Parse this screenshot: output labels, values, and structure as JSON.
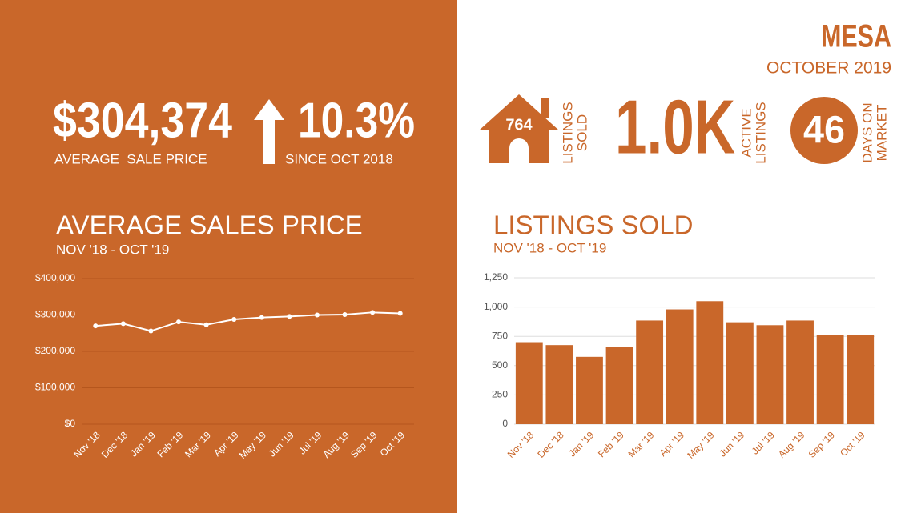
{
  "header": {
    "city": "MESA",
    "period": "OCTOBER 2019"
  },
  "stats": {
    "avg_price": "$304,374",
    "avg_price_label": "AVERAGE  SALE PRICE",
    "change": "10.3%",
    "change_label": "SINCE OCT 2018",
    "listings_sold": "764",
    "listings_sold_label": [
      "LISTINGS",
      "SOLD"
    ],
    "active": "1.0K",
    "active_label": [
      "ACTIVE",
      "LISTINGS"
    ],
    "days": "46",
    "days_label": [
      "DAYS ON",
      "MARKET"
    ]
  },
  "chart_data": [
    {
      "type": "line",
      "title": "AVERAGE SALES PRICE",
      "subtitle": "NOV '18 - OCT '19",
      "categories": [
        "Nov '18",
        "Dec '18",
        "Jan '19",
        "Feb '19",
        "Mar '19",
        "Apr '19",
        "May '19",
        "Jun '19",
        "Jul '19",
        "Aug '19",
        "Sep '19",
        "Oct '19"
      ],
      "values": [
        270000,
        276000,
        256000,
        281000,
        273000,
        288000,
        293000,
        296000,
        300000,
        301000,
        307000,
        304374
      ],
      "color": "#ffffff",
      "ylim": [
        0,
        400000
      ],
      "yticks": [
        {
          "value": 0,
          "label": "$0"
        },
        {
          "value": 100000,
          "label": "$100,000"
        },
        {
          "value": 200000,
          "label": "$200,000"
        },
        {
          "value": 300000,
          "label": "$300,000"
        },
        {
          "value": 400000,
          "label": "$400,000"
        }
      ],
      "grid": true
    },
    {
      "type": "bar",
      "title": "LISTINGS SOLD",
      "subtitle": "NOV '18 - OCT '19",
      "categories": [
        "Nov '18",
        "Dec '18",
        "Jan '19",
        "Feb '19",
        "Mar '19",
        "Apr '19",
        "May '19",
        "Jun '19",
        "Jul '19",
        "Aug '19",
        "Sep '19",
        "Oct '19"
      ],
      "values": [
        700,
        675,
        575,
        660,
        885,
        980,
        1050,
        870,
        845,
        885,
        760,
        764
      ],
      "color": "#c9672a",
      "ylim": [
        0,
        1250
      ],
      "yticks": [
        0,
        250,
        500,
        750,
        {
          "value": 1000,
          "label": "1,000"
        },
        {
          "value": 1250,
          "label": "1,250"
        }
      ],
      "grid": true
    }
  ]
}
